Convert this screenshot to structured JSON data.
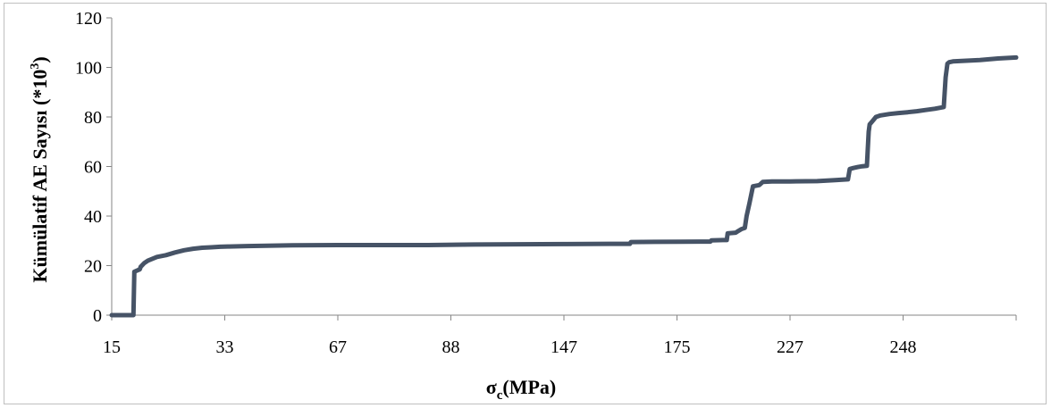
{
  "chart_data": {
    "type": "line",
    "title": "",
    "xlabel": {
      "main": "σ",
      "sub": "c",
      "rest": "(MPa)"
    },
    "ylabel": {
      "main": "Kümülatif AE Sayısı (*10",
      "sup": "3",
      "rest": ")"
    },
    "x_tick_labels": [
      "15",
      "33",
      "67",
      "88",
      "147",
      "175",
      "227",
      "248"
    ],
    "y_ticks": [
      0,
      20,
      40,
      60,
      80,
      100,
      120
    ],
    "ylim": [
      0,
      120
    ],
    "xlim": [
      0,
      1
    ],
    "grid": false,
    "legend": "none",
    "line_color": "#465366",
    "series": [
      {
        "x": [
          0,
          0.024,
          0.025,
          0.031,
          0.032,
          0.036,
          0.04,
          0.05,
          0.06,
          0.07,
          0.08,
          0.09,
          0.1,
          0.11,
          0.12,
          0.13,
          0.15,
          0.2,
          0.25,
          0.3,
          0.35,
          0.4,
          0.45,
          0.5,
          0.55,
          0.573,
          0.574,
          0.6,
          0.65,
          0.662,
          0.663,
          0.676,
          0.68,
          0.681,
          0.69,
          0.693,
          0.696,
          0.7,
          0.702,
          0.705,
          0.709,
          0.716,
          0.72,
          0.73,
          0.75,
          0.78,
          0.8,
          0.814,
          0.816,
          0.82,
          0.825,
          0.83,
          0.835,
          0.837,
          0.838,
          0.84,
          0.845,
          0.85,
          0.86,
          0.87,
          0.88,
          0.89,
          0.9,
          0.91,
          0.92,
          0.922,
          0.924,
          0.926,
          0.93,
          0.94,
          0.96,
          0.98,
          1.0
        ],
        "y": [
          0,
          0,
          17.5,
          18.5,
          19.5,
          21,
          22,
          23.5,
          24.2,
          25.3,
          26.2,
          26.8,
          27.2,
          27.4,
          27.6,
          27.7,
          27.9,
          28.2,
          28.3,
          28.3,
          28.3,
          28.5,
          28.6,
          28.7,
          28.8,
          28.8,
          29.5,
          29.6,
          29.7,
          29.7,
          30.2,
          30.3,
          30.3,
          33,
          33.3,
          34,
          34.7,
          35.2,
          40,
          45,
          52,
          52.5,
          53.8,
          54,
          54,
          54.1,
          54.5,
          54.8,
          59,
          59.4,
          59.8,
          60.1,
          60.3,
          74,
          77,
          77.8,
          80,
          80.6,
          81.2,
          81.6,
          81.9,
          82.3,
          82.8,
          83.3,
          84,
          96,
          101.5,
          102.1,
          102.4,
          102.6,
          103,
          103.6,
          104
        ]
      }
    ]
  }
}
